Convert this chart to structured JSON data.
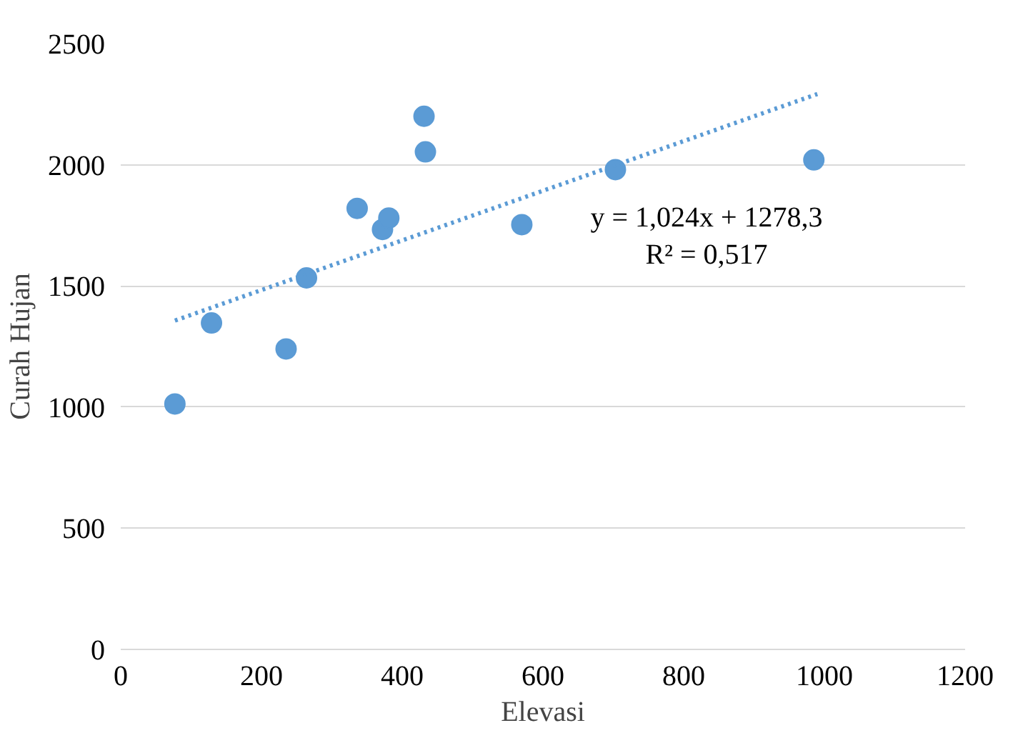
{
  "chart_data": {
    "type": "scatter",
    "xlabel": "Elevasi",
    "ylabel": "Curah Hujan",
    "xlim": [
      0,
      1200
    ],
    "xticks": [
      0,
      200,
      400,
      600,
      800,
      1000,
      1200
    ],
    "ylim": [
      0,
      2500
    ],
    "yticks": [
      0,
      500,
      1000,
      1500,
      2000,
      2500
    ],
    "grid": "y",
    "marker": "circle",
    "series": [
      {
        "color": "#5b9bd5",
        "x": [
          77,
          129,
          235,
          264,
          336,
          372,
          381,
          431,
          433,
          570,
          703,
          985
        ],
        "values": [
          1013,
          1347,
          1240,
          1533,
          1820,
          1733,
          1780,
          2200,
          2053,
          1753,
          1980,
          2020
        ]
      },
      {
        "type": "line",
        "color": "#5b9bd5",
        "line_style": "dotted",
        "marker": "none",
        "x": [
          77,
          990
        ],
        "values": [
          1357,
          2292
        ]
      }
    ],
    "annotations": [
      "y = 1,024x + 1278,3",
      "R² = 0,517"
    ]
  }
}
